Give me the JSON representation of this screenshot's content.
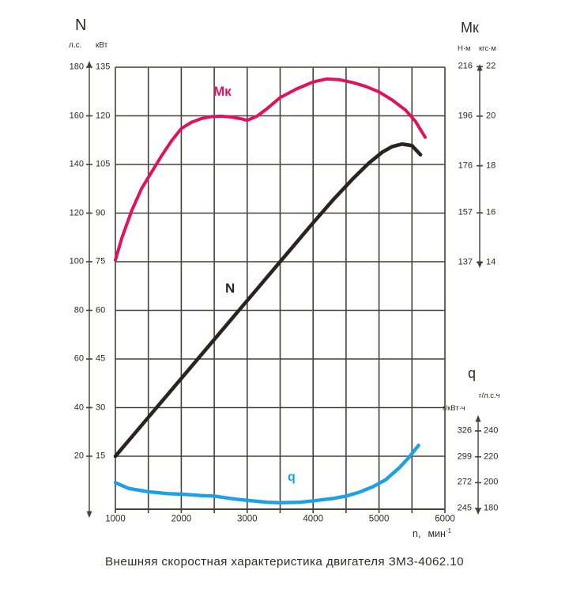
{
  "caption": "Внешняя скоростная характеристика двигателя ЗМЗ-4062.10",
  "colors": {
    "torque_curve": "#e2115c",
    "power_curve": "#2b2320",
    "sfc_curve": "#1ea0e6",
    "grid": "#45413a",
    "text": "#2e2a25",
    "background": "#ffffff"
  },
  "labels": {
    "power_axis_title": "N",
    "power_unit_hp": "л.с.",
    "power_unit_kw": "кВт",
    "torque_axis_title": "Мк",
    "torque_unit_nm": "Н·м",
    "torque_unit_kgfm": "кгс·м",
    "sfc_axis_title": "q",
    "sfc_unit_ghph": "г/л.с.ч",
    "sfc_unit_gkwh": "г/кВт·ч",
    "x_axis_prefix": "n,",
    "x_axis_unit": "мин",
    "x_axis_exponent": "-1",
    "curve_torque": "Мк",
    "curve_power": "N",
    "curve_sfc": "q"
  },
  "chart_data": {
    "type": "line",
    "title": "Внешняя скоростная характеристика двигателя ЗМЗ-4062.10",
    "x": {
      "label": "n, мин⁻¹",
      "range": [
        1000,
        6000
      ],
      "labeled_ticks": [
        1000,
        2000,
        3000,
        4000,
        5000,
        6000
      ],
      "grid_step": 500
    },
    "y_axes": {
      "power": {
        "label": "N",
        "units": [
          "л.с.",
          "кВт"
        ],
        "ticks_hp": [
          180,
          160,
          140,
          120,
          100,
          80,
          60,
          40,
          20
        ],
        "ticks_kw": [
          135,
          120,
          105,
          90,
          75,
          60,
          45,
          30,
          15
        ]
      },
      "torque": {
        "label": "Мк",
        "units": [
          "Н·м",
          "кгс·м"
        ],
        "ticks_nm": [
          216,
          196,
          176,
          157,
          137
        ],
        "ticks_kgfm": [
          22,
          20,
          18,
          16,
          14
        ]
      },
      "sfc": {
        "label": "q",
        "units": [
          "г/кВт·ч",
          "г/л.с.ч"
        ],
        "ticks_gkwh": [
          326,
          299,
          272,
          245
        ],
        "ticks_ghph": [
          240,
          220,
          200,
          180
        ]
      }
    },
    "series": [
      {
        "name": "Мк",
        "axis": "torque",
        "unit": "Н·м",
        "color": "#e2115c",
        "points": [
          [
            1000,
            138
          ],
          [
            1100,
            147
          ],
          [
            1250,
            158
          ],
          [
            1400,
            167
          ],
          [
            1550,
            173.5
          ],
          [
            1700,
            180
          ],
          [
            1850,
            186
          ],
          [
            2000,
            191
          ],
          [
            2150,
            193.5
          ],
          [
            2300,
            195
          ],
          [
            2450,
            195.8
          ],
          [
            2600,
            196
          ],
          [
            2750,
            195.7
          ],
          [
            2900,
            195
          ],
          [
            3000,
            194.3
          ],
          [
            3150,
            196
          ],
          [
            3300,
            199
          ],
          [
            3500,
            203.5
          ],
          [
            3750,
            207
          ],
          [
            4000,
            209.8
          ],
          [
            4200,
            211
          ],
          [
            4400,
            210.7
          ],
          [
            4600,
            209.6
          ],
          [
            4800,
            208
          ],
          [
            5000,
            205.8
          ],
          [
            5200,
            202.5
          ],
          [
            5400,
            198.5
          ],
          [
            5550,
            194
          ],
          [
            5700,
            187.5
          ]
        ]
      },
      {
        "name": "N",
        "axis": "power",
        "unit": "кВт",
        "color": "#2b2320",
        "points": [
          [
            1000,
            15
          ],
          [
            1500,
            27
          ],
          [
            2000,
            39
          ],
          [
            2500,
            51
          ],
          [
            3000,
            63
          ],
          [
            3500,
            75
          ],
          [
            4000,
            87
          ],
          [
            4300,
            94
          ],
          [
            4600,
            100.5
          ],
          [
            4850,
            105.5
          ],
          [
            5050,
            108.8
          ],
          [
            5200,
            110.5
          ],
          [
            5350,
            111.3
          ],
          [
            5500,
            110.8
          ],
          [
            5630,
            108
          ]
        ]
      },
      {
        "name": "q",
        "axis": "sfc",
        "unit": "г/кВт·ч",
        "color": "#1ea0e6",
        "points": [
          [
            1000,
            272
          ],
          [
            1200,
            266
          ],
          [
            1500,
            262.5
          ],
          [
            1800,
            260.5
          ],
          [
            2000,
            260
          ],
          [
            2300,
            258.5
          ],
          [
            2500,
            258
          ],
          [
            2800,
            255
          ],
          [
            3000,
            253.5
          ],
          [
            3300,
            251.5
          ],
          [
            3500,
            251
          ],
          [
            3800,
            251.5
          ],
          [
            4000,
            253
          ],
          [
            4300,
            255.5
          ],
          [
            4500,
            258
          ],
          [
            4700,
            262
          ],
          [
            4900,
            267.5
          ],
          [
            5100,
            275
          ],
          [
            5300,
            287
          ],
          [
            5450,
            298
          ],
          [
            5600,
            311
          ]
        ]
      }
    ]
  }
}
